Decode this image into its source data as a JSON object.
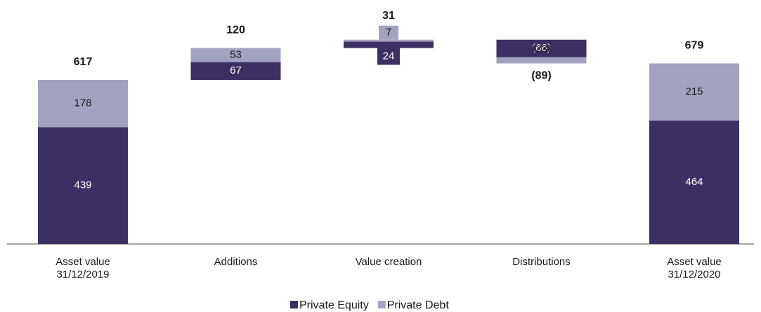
{
  "chart_data": {
    "type": "waterfall",
    "categories": [
      [
        "Asset value",
        "31/12/2019"
      ],
      [
        "Additions"
      ],
      [
        "Value creation"
      ],
      [
        "Distributions"
      ],
      [
        "Asset value",
        "31/12/2020"
      ]
    ],
    "measures": [
      "total",
      "relative",
      "relative",
      "relative",
      "total"
    ],
    "series": [
      {
        "name": "Private Equity",
        "color": "#3b2f63",
        "values": [
          439,
          67,
          24,
          -66,
          464
        ],
        "value_labels": [
          "439",
          "67",
          "24",
          "(66)",
          "464"
        ]
      },
      {
        "name": "Private Debt",
        "color": "#a2a3c0",
        "values": [
          178,
          53,
          7,
          -23,
          215
        ],
        "value_labels": [
          "178",
          "53",
          "7",
          "(23)",
          "215"
        ]
      }
    ],
    "totals": [
      617,
      120,
      31,
      -89,
      679
    ],
    "total_labels": [
      "617",
      "120",
      "31",
      "(89)",
      "679"
    ],
    "legend": "bottom"
  }
}
